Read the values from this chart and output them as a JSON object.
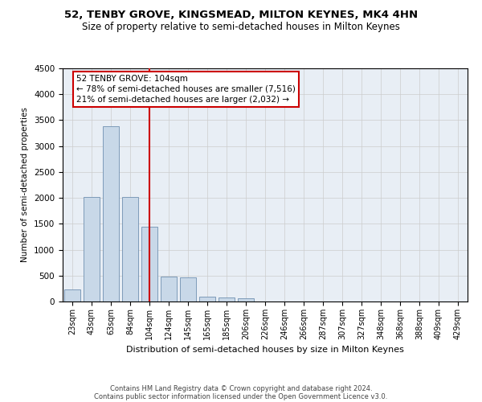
{
  "title": "52, TENBY GROVE, KINGSMEAD, MILTON KEYNES, MK4 4HN",
  "subtitle": "Size of property relative to semi-detached houses in Milton Keynes",
  "xlabel": "Distribution of semi-detached houses by size in Milton Keynes",
  "ylabel": "Number of semi-detached properties",
  "categories": [
    "23sqm",
    "43sqm",
    "63sqm",
    "84sqm",
    "104sqm",
    "124sqm",
    "145sqm",
    "165sqm",
    "185sqm",
    "206sqm",
    "226sqm",
    "246sqm",
    "266sqm",
    "287sqm",
    "307sqm",
    "327sqm",
    "348sqm",
    "368sqm",
    "388sqm",
    "409sqm",
    "429sqm"
  ],
  "values": [
    230,
    2020,
    3380,
    2010,
    1450,
    480,
    470,
    95,
    70,
    60,
    0,
    0,
    0,
    0,
    0,
    0,
    0,
    0,
    0,
    0,
    0
  ],
  "bar_color": "#c8d8e8",
  "bar_edge_color": "#7090b0",
  "highlight_bar_index": 4,
  "highlight_line_color": "#cc0000",
  "ylim": [
    0,
    4500
  ],
  "yticks": [
    0,
    500,
    1000,
    1500,
    2000,
    2500,
    3000,
    3500,
    4000,
    4500
  ],
  "annotation_box_text": "52 TENBY GROVE: 104sqm\n← 78% of semi-detached houses are smaller (7,516)\n21% of semi-detached houses are larger (2,032) →",
  "annotation_box_color": "#ffffff",
  "annotation_box_edge_color": "#cc0000",
  "footer_line1": "Contains HM Land Registry data © Crown copyright and database right 2024.",
  "footer_line2": "Contains public sector information licensed under the Open Government Licence v3.0.",
  "background_color": "#ffffff",
  "plot_bg_color": "#e8eef5",
  "grid_color": "#cccccc",
  "title_fontsize": 9.5,
  "subtitle_fontsize": 8.5
}
